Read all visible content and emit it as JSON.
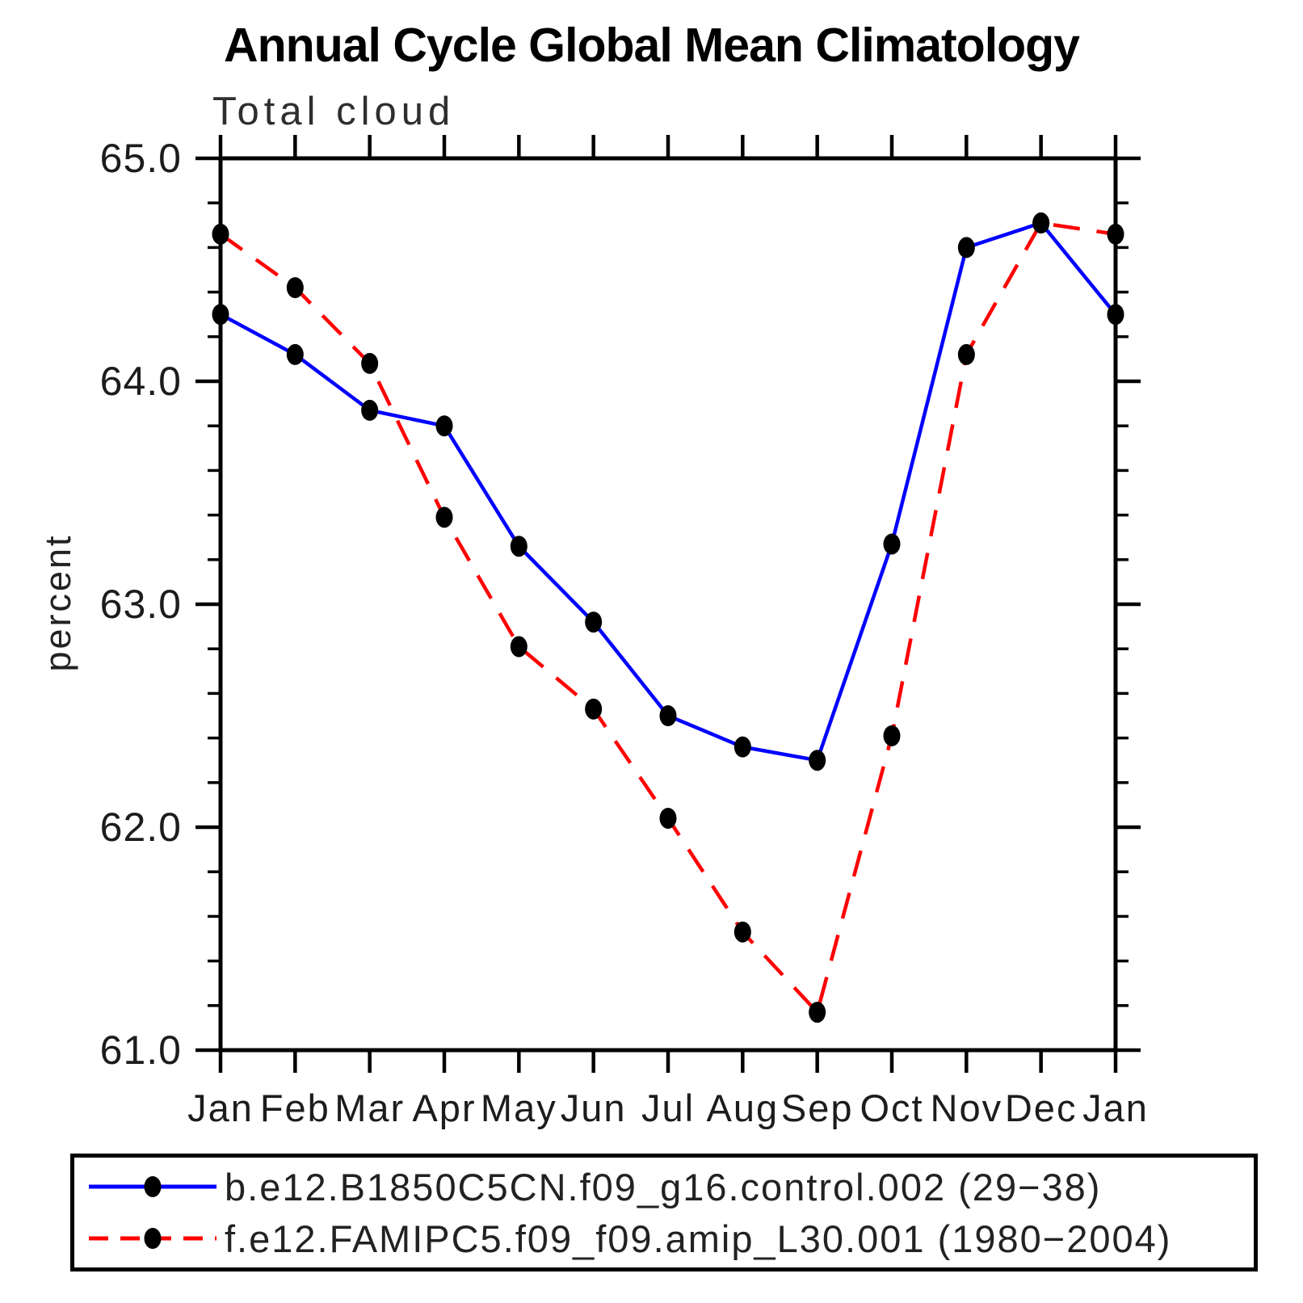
{
  "title": "Annual Cycle Global Mean Climatology",
  "subtitle": "Total cloud",
  "legend": {
    "series1_label": "b.e12.B1850C5CN.f09_g16.control.002 (29−38)",
    "series2_label": "f.e12.FAMIPC5.f09_f09.amip_L30.001 (1980−2004)"
  },
  "colors": {
    "series1": "#0000ff",
    "series2": "#ff0000",
    "marker": "#000000",
    "axis": "#000000"
  },
  "chart_data": {
    "type": "line",
    "title": "Annual Cycle Global Mean Climatology",
    "subtitle": "Total cloud",
    "xlabel": "",
    "ylabel": "percent",
    "categories": [
      "Jan",
      "Feb",
      "Mar",
      "Apr",
      "May",
      "Jun",
      "Jul",
      "Aug",
      "Sep",
      "Oct",
      "Nov",
      "Dec",
      "Jan"
    ],
    "series": [
      {
        "name": "b.e12.B1850C5CN.f09_g16.control.002 (29−38)",
        "color": "#0000ff",
        "style": "solid",
        "marker": "filled-circle",
        "values": [
          64.3,
          64.12,
          63.87,
          63.8,
          63.26,
          62.92,
          62.5,
          62.36,
          62.3,
          63.27,
          64.6,
          64.71,
          64.3
        ]
      },
      {
        "name": "f.e12.FAMIPC5.f09_f09.amip_L30.001 (1980−2004)",
        "color": "#ff0000",
        "style": "dashed",
        "marker": "filled-circle",
        "values": [
          64.66,
          64.42,
          64.08,
          63.39,
          62.81,
          62.53,
          62.04,
          61.53,
          61.17,
          62.41,
          64.12,
          64.71,
          64.66
        ]
      }
    ],
    "ylim": [
      61.0,
      65.0
    ],
    "yticks": [
      65.0,
      64.0,
      63.0,
      62.0,
      61.0
    ],
    "ytick_labels": [
      "65.0",
      "64.0",
      "63.0",
      "62.0",
      "61.0"
    ],
    "y_minor_interval": 0.2,
    "grid": false,
    "legend_position": "bottom"
  }
}
